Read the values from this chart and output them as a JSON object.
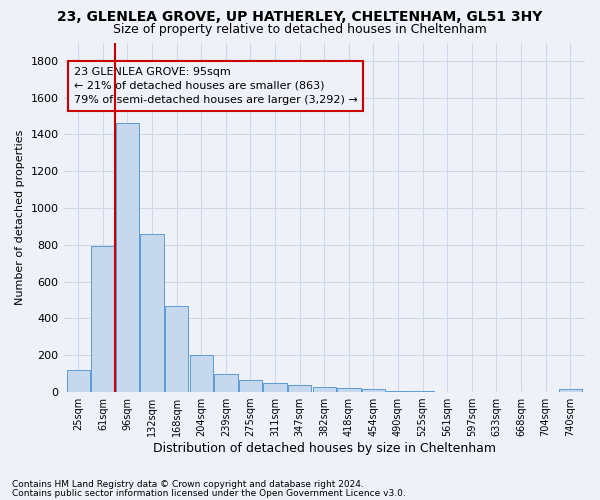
{
  "title1": "23, GLENLEA GROVE, UP HATHERLEY, CHELTENHAM, GL51 3HY",
  "title2": "Size of property relative to detached houses in Cheltenham",
  "xlabel": "Distribution of detached houses by size in Cheltenham",
  "ylabel": "Number of detached properties",
  "categories": [
    "25sqm",
    "61sqm",
    "96sqm",
    "132sqm",
    "168sqm",
    "204sqm",
    "239sqm",
    "275sqm",
    "311sqm",
    "347sqm",
    "382sqm",
    "418sqm",
    "454sqm",
    "490sqm",
    "525sqm",
    "561sqm",
    "597sqm",
    "633sqm",
    "668sqm",
    "704sqm",
    "740sqm"
  ],
  "values": [
    120,
    795,
    1460,
    860,
    470,
    200,
    100,
    65,
    50,
    40,
    30,
    22,
    18,
    5,
    5,
    3,
    2,
    1,
    1,
    1,
    15
  ],
  "bar_color": "#c5d8ed",
  "bar_edge_color": "#5b9bd5",
  "grid_color": "#d0d8e8",
  "annotation_box_text": "23 GLENLEA GROVE: 95sqm\n← 21% of detached houses are smaller (863)\n79% of semi-detached houses are larger (3,292) →",
  "annotation_box_color": "#cc0000",
  "property_line_color": "#cc0000",
  "ylim": [
    0,
    1900
  ],
  "yticks": [
    0,
    200,
    400,
    600,
    800,
    1000,
    1200,
    1400,
    1600,
    1800
  ],
  "footnote1": "Contains HM Land Registry data © Crown copyright and database right 2024.",
  "footnote2": "Contains public sector information licensed under the Open Government Licence v3.0.",
  "bg_color": "#eef2f8",
  "title1_fontsize": 10,
  "title2_fontsize": 9,
  "xlabel_fontsize": 9,
  "ylabel_fontsize": 8,
  "xtick_fontsize": 7,
  "ytick_fontsize": 8,
  "annot_fontsize": 8,
  "footnote_fontsize": 6.5
}
